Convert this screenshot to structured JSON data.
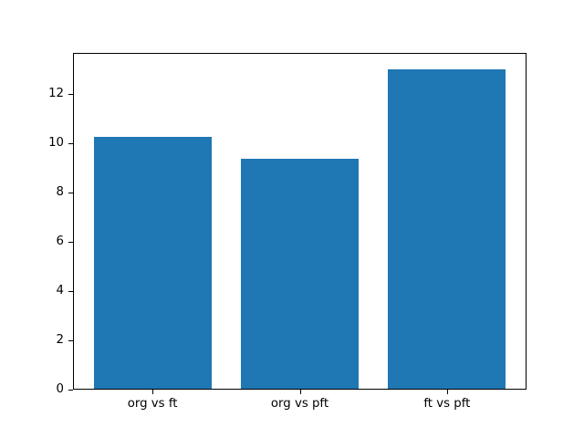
{
  "figure": {
    "background_color": "#ffffff",
    "spine_color": "#000000",
    "text_color": "#000000"
  },
  "chart_data": {
    "type": "bar",
    "categories": [
      "org vs ft",
      "org vs pft",
      "ft vs pft"
    ],
    "values": [
      10.25,
      9.35,
      13.0
    ],
    "title": "",
    "xlabel": "",
    "ylabel": "",
    "xlim": [
      -0.54,
      2.54
    ],
    "ylim": [
      0,
      13.65
    ],
    "yticks": [
      0,
      2,
      4,
      6,
      8,
      10,
      12
    ],
    "bar_width": 0.8,
    "bar_color": "#1f77b4",
    "grid": false,
    "legend": null
  }
}
